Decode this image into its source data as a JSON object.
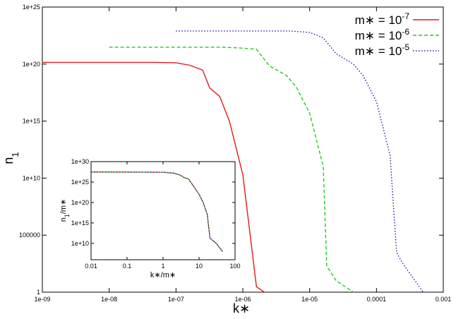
{
  "chart_data": [
    {
      "type": "line",
      "xscale": "log",
      "yscale": "log",
      "xlabel": "k∗",
      "ylabel": "n",
      "ylabel_sub": "1",
      "xlim": [
        1e-09,
        0.001
      ],
      "ylim": [
        1,
        1e+25
      ],
      "xticks": [
        {
          "value": 1e-09,
          "label": "1e-09"
        },
        {
          "value": 1e-08,
          "label": "1e-08"
        },
        {
          "value": 1e-07,
          "label": "1e-07"
        },
        {
          "value": 1e-06,
          "label": "1e-06"
        },
        {
          "value": 1e-05,
          "label": "1e-05"
        },
        {
          "value": 0.0001,
          "label": "0.0001"
        },
        {
          "value": 0.001,
          "label": "0.001"
        }
      ],
      "yticks": [
        {
          "value": 1,
          "label": "1"
        },
        {
          "value": 100000.0,
          "label": "100000"
        },
        {
          "value": 10000000000.0,
          "label": "1e+10"
        },
        {
          "value": 1000000000000000.0,
          "label": "1e+15"
        },
        {
          "value": 1e+20,
          "label": "1e+20"
        },
        {
          "value": 1e+25,
          "label": "1e+25"
        }
      ],
      "grid": false,
      "legend_position": "top-right",
      "series": [
        {
          "legend": {
            "base": "m∗ = 10",
            "exp": "-7"
          },
          "color": "#e41a1c",
          "dash": "solid",
          "points": [
            [
              1e-09,
              1.4e+20
            ],
            [
              5e-08,
              1.4e+20
            ],
            [
              1e-07,
              1.3e+20
            ],
            [
              1.6e-07,
              8e+19
            ],
            [
              2.5e-07,
              3e+19
            ],
            [
              3.2e-07,
              8e+17
            ],
            [
              4.5e-07,
              1.5e+17
            ],
            [
              6.3e-07,
              1000000000000000.0
            ],
            [
              1e-06,
              20000000000.0
            ],
            [
              1.6e-06,
              3
            ],
            [
              2.5e-06,
              0.5
            ],
            [
              4e-06,
              0.3
            ]
          ]
        },
        {
          "legend": {
            "base": "m∗ = 10",
            "exp": "-6"
          },
          "color": "#22cc22",
          "dash": "dashed",
          "points": [
            [
              1e-08,
              3e+21
            ],
            [
              5e-07,
              3e+21
            ],
            [
              1e-06,
              2.5e+21
            ],
            [
              1.6e-06,
              2e+21
            ],
            [
              2.5e-06,
              7e+19
            ],
            [
              4.5e-06,
              1e+19
            ],
            [
              6.3e-06,
              1e+18
            ],
            [
              1e-05,
              5000000000000000.0
            ],
            [
              1.6e-05,
              100000000000.0
            ],
            [
              1.8e-05,
              200
            ],
            [
              2.5e-05,
              10
            ],
            [
              5e-05,
              0.7
            ]
          ]
        },
        {
          "legend": {
            "base": "m∗ = 10",
            "exp": "-5"
          },
          "color": "#1a1aaa",
          "dash": "dotted",
          "points": [
            [
              1e-07,
              8e+22
            ],
            [
              5e-06,
              8e+22
            ],
            [
              1e-05,
              6e+22
            ],
            [
              1.6e-05,
              2e+22
            ],
            [
              2.5e-05,
              8e+20
            ],
            [
              4.5e-05,
              1e+20
            ],
            [
              6.3e-05,
              1e+19
            ],
            [
              0.0001,
              5e+16
            ],
            [
              0.00016,
              1000000000000.0
            ],
            [
              0.0002,
              3000
            ],
            [
              0.00025,
              300
            ],
            [
              0.0005,
              1
            ],
            [
              0.00063,
              0.3
            ]
          ]
        }
      ]
    },
    {
      "type": "line",
      "inset": true,
      "xscale": "log",
      "yscale": "log",
      "xlabel": "k∗/m∗",
      "ylabel": "n",
      "ylabel_sub": "1",
      "ylabel_rest": "/m∗",
      "xlim": [
        0.01,
        100
      ],
      "ylim": [
        1000000.0,
        1e+30
      ],
      "xticks": [
        {
          "value": 0.01,
          "label": "0.01"
        },
        {
          "value": 0.1,
          "label": "0.1"
        },
        {
          "value": 1,
          "label": "1"
        },
        {
          "value": 10,
          "label": "10"
        },
        {
          "value": 100,
          "label": "100"
        }
      ],
      "yticks": [
        {
          "value": 10000000000.0,
          "label": "1e+10"
        },
        {
          "value": 1000000000000000.0,
          "label": "1e+15"
        },
        {
          "value": 1e+20,
          "label": "1e+20"
        },
        {
          "value": 1e+25,
          "label": "1e+25"
        },
        {
          "value": 1e+30,
          "label": "1e+30"
        }
      ],
      "series": [
        {
          "color": "#e41a1c",
          "dash": "solid",
          "points": [
            [
              0.01,
              3e+27
            ],
            [
              1,
              2.5e+27
            ],
            [
              2,
              1.5e+27
            ],
            [
              3,
              5e+26
            ],
            [
              4,
              1e+26
            ],
            [
              5,
              7e+25
            ],
            [
              7,
              1e+24
            ],
            [
              10,
              1e+22
            ],
            [
              13,
              1e+20
            ],
            [
              17,
              1e+17
            ],
            [
              20,
              200000000000.0
            ],
            [
              30,
              10000000000.0
            ],
            [
              45,
              100000000.0
            ]
          ]
        },
        {
          "color": "#22cc22",
          "dash": "dashed",
          "points": [
            [
              0.01,
              3e+27
            ],
            [
              1,
              2.5e+27
            ],
            [
              2,
              1.5e+27
            ],
            [
              3,
              5e+26
            ],
            [
              4,
              1e+26
            ],
            [
              5,
              7e+25
            ],
            [
              7,
              1e+24
            ],
            [
              10,
              1e+22
            ],
            [
              13,
              1e+20
            ],
            [
              17,
              1e+17
            ],
            [
              20,
              200000000000.0
            ],
            [
              30,
              10000000000.0
            ],
            [
              45,
              100000000.0
            ]
          ]
        },
        {
          "color": "#1a1aaa",
          "dash": "dotted",
          "points": [
            [
              0.01,
              3e+27
            ],
            [
              1,
              2.5e+27
            ],
            [
              2,
              1.5e+27
            ],
            [
              3,
              5e+26
            ],
            [
              4,
              1e+26
            ],
            [
              5,
              7e+25
            ],
            [
              7,
              1e+24
            ],
            [
              10,
              1e+22
            ],
            [
              13,
              1e+20
            ],
            [
              17,
              1e+17
            ],
            [
              20,
              200000000000.0
            ],
            [
              30,
              10000000000.0
            ],
            [
              45,
              100000000.0
            ]
          ]
        }
      ]
    }
  ]
}
